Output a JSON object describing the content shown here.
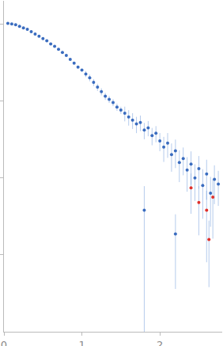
{
  "chart_data": {
    "type": "scatter",
    "log": "y",
    "tick_labels": "x",
    "grid": false,
    "marker": "circle",
    "xlim": [
      0,
      2.8
    ],
    "xticks": [
      0,
      1,
      2
    ],
    "ylim": [
      0.0001,
      2
    ],
    "yticks": [
      0.001,
      0.01,
      0.1,
      1
    ],
    "x": [
      0.05,
      0.1,
      0.15,
      0.2,
      0.25,
      0.3,
      0.35,
      0.4,
      0.45,
      0.5,
      0.55,
      0.6,
      0.65,
      0.7,
      0.75,
      0.8,
      0.85,
      0.9,
      0.95,
      1.0,
      1.05,
      1.1,
      1.15,
      1.2,
      1.25,
      1.3,
      1.35,
      1.4,
      1.45,
      1.5,
      1.55,
      1.6,
      1.65,
      1.7,
      1.75,
      1.8,
      1.85,
      1.9,
      1.95,
      2.0,
      2.05,
      2.1,
      2.15,
      2.2,
      2.25,
      2.3,
      2.35,
      2.4,
      2.45,
      2.5,
      2.55,
      2.6,
      2.65,
      2.7,
      2.75,
      1.8,
      2.2,
      2.4,
      2.5,
      2.6,
      2.63,
      2.68
    ],
    "values": [
      1.02,
      1.0,
      0.977,
      0.933,
      0.891,
      0.851,
      0.794,
      0.741,
      0.692,
      0.646,
      0.603,
      0.55,
      0.513,
      0.468,
      0.427,
      0.389,
      0.347,
      0.309,
      0.275,
      0.251,
      0.224,
      0.2,
      0.174,
      0.151,
      0.132,
      0.115,
      0.105,
      0.0955,
      0.0832,
      0.0759,
      0.0692,
      0.0617,
      0.0562,
      0.0501,
      0.0525,
      0.0417,
      0.0447,
      0.0355,
      0.038,
      0.0302,
      0.0251,
      0.0282,
      0.02,
      0.0224,
      0.0158,
      0.0178,
      0.0126,
      0.0151,
      0.01,
      0.0132,
      0.00794,
      0.0112,
      0.00631,
      0.00955,
      0.00832,
      0.0038,
      0.00186,
      0.00741,
      0.00479,
      0.0038,
      0.00158,
      0.00562
    ],
    "errors": [
      0.03,
      0.03,
      0.03,
      0.03,
      0.027,
      0.026,
      0.024,
      0.022,
      0.021,
      0.019,
      0.018,
      0.017,
      0.015,
      0.014,
      0.013,
      0.012,
      0.01,
      0.009,
      0.008,
      0.008,
      0.02,
      0.02,
      0.018,
      0.016,
      0.014,
      0.012,
      0.011,
      0.01,
      0.009,
      0.008,
      0.015,
      0.014,
      0.013,
      0.012,
      0.012,
      0.01,
      0.01,
      0.009,
      0.009,
      0.008,
      0.009,
      0.01,
      0.008,
      0.009,
      0.007,
      0.007,
      0.006,
      0.007,
      0.005,
      0.006,
      0.005,
      0.006,
      0.004,
      0.005,
      0.004,
      0.004,
      0.0015,
      0.004,
      0.003,
      0.003,
      0.0012,
      0.004
    ],
    "colors": [
      "#3a6cbf",
      "#3a6cbf",
      "#3a6cbf",
      "#3a6cbf",
      "#3a6cbf",
      "#3a6cbf",
      "#3a6cbf",
      "#3a6cbf",
      "#3a6cbf",
      "#3a6cbf",
      "#3a6cbf",
      "#3a6cbf",
      "#3a6cbf",
      "#3a6cbf",
      "#3a6cbf",
      "#3a6cbf",
      "#3a6cbf",
      "#3a6cbf",
      "#3a6cbf",
      "#3a6cbf",
      "#3a6cbf",
      "#3a6cbf",
      "#3a6cbf",
      "#3a6cbf",
      "#3a6cbf",
      "#3a6cbf",
      "#3a6cbf",
      "#3a6cbf",
      "#3a6cbf",
      "#3a6cbf",
      "#3a6cbf",
      "#3a6cbf",
      "#3a6cbf",
      "#3a6cbf",
      "#3a6cbf",
      "#3a6cbf",
      "#3a6cbf",
      "#3a6cbf",
      "#3a6cbf",
      "#3a6cbf",
      "#3a6cbf",
      "#3a6cbf",
      "#3a6cbf",
      "#3a6cbf",
      "#3a6cbf",
      "#3a6cbf",
      "#3a6cbf",
      "#3a6cbf",
      "#3a6cbf",
      "#3a6cbf",
      "#3a6cbf",
      "#3a6cbf",
      "#3a6cbf",
      "#3a6cbf",
      "#3a6cbf",
      "#3a6cbf",
      "#3a6cbf",
      "#e0302a",
      "#e0302a",
      "#e0302a",
      "#e0302a",
      "#e0302a"
    ]
  }
}
